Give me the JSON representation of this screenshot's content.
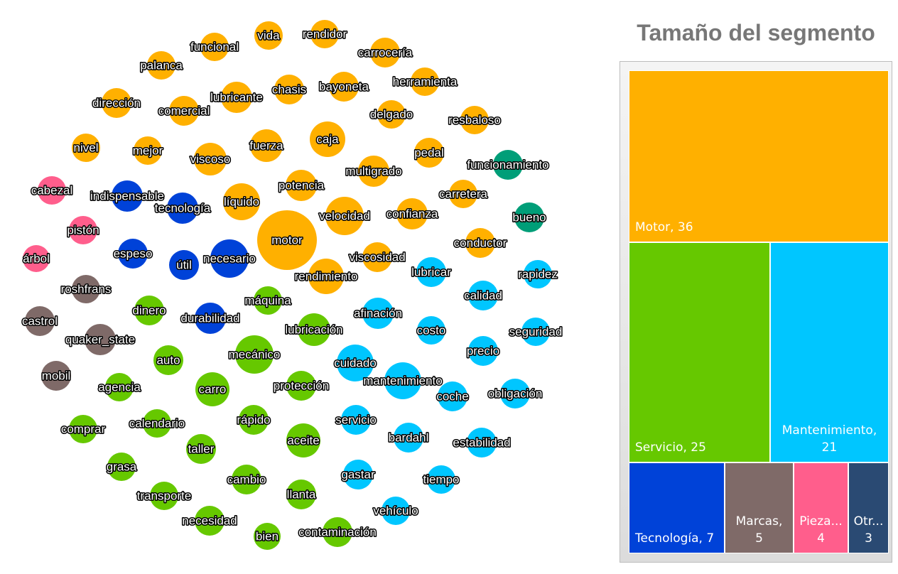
{
  "chart_data": [
    {
      "type": "bubble-cloud",
      "colors": {
        "Motor": "#FFB000",
        "Servicio": "#66C800",
        "Mantenimiento": "#00C6FF",
        "Tecnología": "#0042D8",
        "Marcas": "#7F6A68",
        "Piezas": "#FF5E8C",
        "Otros": "#009E78"
      },
      "words": [
        {
          "text": "vida",
          "segment": "Motor",
          "r": 20
        },
        {
          "text": "rendidor",
          "segment": "Motor",
          "r": 20
        },
        {
          "text": "funcional",
          "segment": "Motor",
          "r": 20
        },
        {
          "text": "carrocería",
          "segment": "Motor",
          "r": 21
        },
        {
          "text": "palanca",
          "segment": "Motor",
          "r": 20
        },
        {
          "text": "bayoneta",
          "segment": "Motor",
          "r": 21
        },
        {
          "text": "herramienta",
          "segment": "Motor",
          "r": 20
        },
        {
          "text": "lubricante",
          "segment": "Motor",
          "r": 22
        },
        {
          "text": "chasis",
          "segment": "Motor",
          "r": 21
        },
        {
          "text": "dirección",
          "segment": "Motor",
          "r": 21
        },
        {
          "text": "comercial",
          "segment": "Motor",
          "r": 21
        },
        {
          "text": "delgado",
          "segment": "Motor",
          "r": 20
        },
        {
          "text": "resbaloso",
          "segment": "Motor",
          "r": 20
        },
        {
          "text": "caja",
          "segment": "Motor",
          "r": 25
        },
        {
          "text": "nivel",
          "segment": "Motor",
          "r": 20
        },
        {
          "text": "mejor",
          "segment": "Motor",
          "r": 20
        },
        {
          "text": "viscoso",
          "segment": "Motor",
          "r": 23
        },
        {
          "text": "fuerza",
          "segment": "Motor",
          "r": 23
        },
        {
          "text": "pedal",
          "segment": "Motor",
          "r": 21
        },
        {
          "text": "multigrado",
          "segment": "Motor",
          "r": 22
        },
        {
          "text": "potencia",
          "segment": "Motor",
          "r": 22
        },
        {
          "text": "carretera",
          "segment": "Motor",
          "r": 20
        },
        {
          "text": "líquido",
          "segment": "Motor",
          "r": 26
        },
        {
          "text": "velocidad",
          "segment": "Motor",
          "r": 27
        },
        {
          "text": "confianza",
          "segment": "Motor",
          "r": 22
        },
        {
          "text": "motor",
          "segment": "Motor",
          "r": 42
        },
        {
          "text": "conductor",
          "segment": "Motor",
          "r": 21
        },
        {
          "text": "viscosidad",
          "segment": "Motor",
          "r": 21
        },
        {
          "text": "rendimiento",
          "segment": "Motor",
          "r": 25
        },
        {
          "text": "funcionamiento",
          "segment": "Otros",
          "r": 21
        },
        {
          "text": "bueno",
          "segment": "Otros",
          "r": 21
        },
        {
          "text": "indispensable",
          "segment": "Tecnología",
          "r": 22
        },
        {
          "text": "tecnología",
          "segment": "Tecnología",
          "r": 22
        },
        {
          "text": "espeso",
          "segment": "Tecnología",
          "r": 21
        },
        {
          "text": "útil",
          "segment": "Tecnología",
          "r": 21
        },
        {
          "text": "necesario",
          "segment": "Tecnología",
          "r": 27
        },
        {
          "text": "durabilidad",
          "segment": "Tecnología",
          "r": 22
        },
        {
          "text": "cabezal",
          "segment": "Piezas",
          "r": 20
        },
        {
          "text": "pistón",
          "segment": "Piezas",
          "r": 20
        },
        {
          "text": "árbol",
          "segment": "Piezas",
          "r": 19
        },
        {
          "text": "roshfrans",
          "segment": "Marcas",
          "r": 20
        },
        {
          "text": "castrol",
          "segment": "Marcas",
          "r": 21
        },
        {
          "text": "quaker_state",
          "segment": "Marcas",
          "r": 22
        },
        {
          "text": "mobil",
          "segment": "Marcas",
          "r": 21
        },
        {
          "text": "máquina",
          "segment": "Servicio",
          "r": 20
        },
        {
          "text": "dinero",
          "segment": "Servicio",
          "r": 21
        },
        {
          "text": "lubricación",
          "segment": "Servicio",
          "r": 23
        },
        {
          "text": "mecánico",
          "segment": "Servicio",
          "r": 27
        },
        {
          "text": "auto",
          "segment": "Servicio",
          "r": 21
        },
        {
          "text": "agencia",
          "segment": "Servicio",
          "r": 20
        },
        {
          "text": "carro",
          "segment": "Servicio",
          "r": 24
        },
        {
          "text": "protección",
          "segment": "Servicio",
          "r": 21
        },
        {
          "text": "mobil_",
          "segment": "Servicio",
          "r": 0
        },
        {
          "text": "comprar",
          "segment": "Servicio",
          "r": 20
        },
        {
          "text": "calendario",
          "segment": "Servicio",
          "r": 20
        },
        {
          "text": "rápido",
          "segment": "Servicio",
          "r": 21
        },
        {
          "text": "aceite",
          "segment": "Servicio",
          "r": 24
        },
        {
          "text": "taller",
          "segment": "Servicio",
          "r": 21
        },
        {
          "text": "grasa",
          "segment": "Servicio",
          "r": 20
        },
        {
          "text": "cambio",
          "segment": "Servicio",
          "r": 21
        },
        {
          "text": "llanta",
          "segment": "Servicio",
          "r": 21
        },
        {
          "text": "transporte",
          "segment": "Servicio",
          "r": 20
        },
        {
          "text": "necesidad",
          "segment": "Servicio",
          "r": 21
        },
        {
          "text": "bien",
          "segment": "Servicio",
          "r": 19
        },
        {
          "text": "contaminación",
          "segment": "Servicio",
          "r": 21
        },
        {
          "text": "lubricar",
          "segment": "Mantenimiento",
          "r": 21
        },
        {
          "text": "rapidez",
          "segment": "Mantenimiento",
          "r": 20
        },
        {
          "text": "calidad",
          "segment": "Mantenimiento",
          "r": 21
        },
        {
          "text": "afinación",
          "segment": "Mantenimiento",
          "r": 22
        },
        {
          "text": "costo",
          "segment": "Mantenimiento",
          "r": 20
        },
        {
          "text": "seguridad",
          "segment": "Mantenimiento",
          "r": 20
        },
        {
          "text": "precio",
          "segment": "Mantenimiento",
          "r": 21
        },
        {
          "text": "cuidado",
          "segment": "Mantenimiento",
          "r": 26
        },
        {
          "text": "mantenimiento",
          "segment": "Mantenimiento",
          "r": 26
        },
        {
          "text": "coche",
          "segment": "Mantenimiento",
          "r": 21
        },
        {
          "text": "obligación",
          "segment": "Mantenimiento",
          "r": 21
        },
        {
          "text": "servicio",
          "segment": "Mantenimiento",
          "r": 21
        },
        {
          "text": "bardahl",
          "segment": "Mantenimiento",
          "r": 21
        },
        {
          "text": "estabilidad",
          "segment": "Mantenimiento",
          "r": 21
        },
        {
          "text": "gastar",
          "segment": "Mantenimiento",
          "r": 21
        },
        {
          "text": "tiempo",
          "segment": "Mantenimiento",
          "r": 20
        },
        {
          "text": "vehículo",
          "segment": "Mantenimiento",
          "r": 20
        }
      ]
    },
    {
      "type": "treemap",
      "title": "Tamaño del segmento",
      "segments": [
        {
          "name": "Motor",
          "label": "Motor, 36",
          "value": 36,
          "color": "#FFB000"
        },
        {
          "name": "Servicio",
          "label": "Servicio, 25",
          "value": 25,
          "color": "#66C800"
        },
        {
          "name": "Mantenimiento",
          "label": "Mantenimiento,\n21",
          "value": 21,
          "color": "#00C6FF"
        },
        {
          "name": "Tecnología",
          "label": "Tecnología, 7",
          "value": 7,
          "color": "#0042D8"
        },
        {
          "name": "Marcas",
          "label": "Marcas,\n5",
          "value": 5,
          "color": "#7F6A68"
        },
        {
          "name": "Piezas",
          "label": "Pieza...\n4",
          "value": 4,
          "color": "#FF5E8C"
        },
        {
          "name": "Otros",
          "label": "Otr...\n3",
          "value": 3,
          "color": "#2A4A73"
        }
      ]
    }
  ]
}
